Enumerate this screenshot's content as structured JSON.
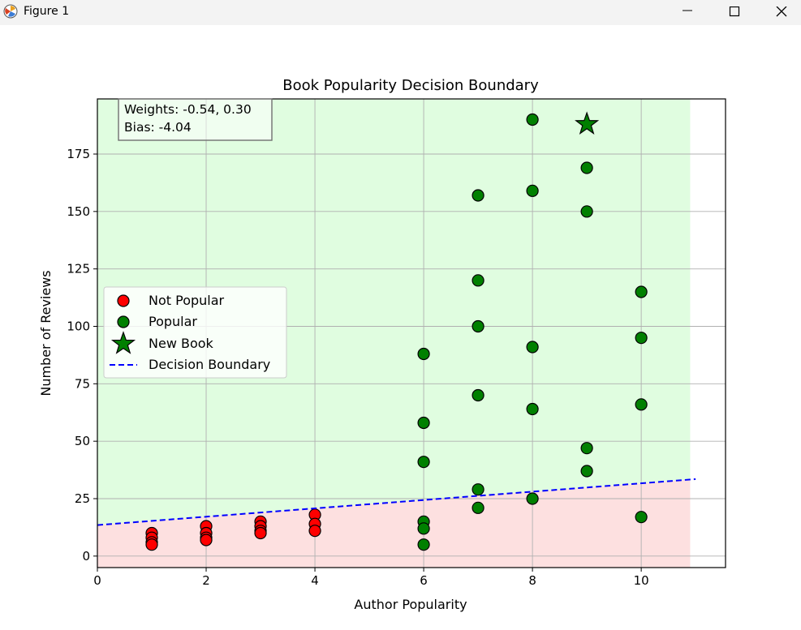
{
  "window": {
    "title": "Figure 1",
    "icons": [
      "app-icon",
      "minimize-icon",
      "maximize-icon",
      "close-icon"
    ]
  },
  "chart_data": {
    "type": "scatter",
    "title": "Book Popularity Decision Boundary",
    "xlabel": "Author Popularity",
    "ylabel": "Number of Reviews",
    "xlim": [
      0,
      11.55
    ],
    "ylim": [
      -5,
      199
    ],
    "xticks": [
      "0",
      "2",
      "4",
      "6",
      "8",
      "10"
    ],
    "yticks": [
      "0",
      "25",
      "50",
      "75",
      "100",
      "125",
      "150",
      "175"
    ],
    "grid": true,
    "legend_position": "center-left",
    "region_x_max": 10.9,
    "regions": [
      {
        "name": "Popular region",
        "color": "#e0fde0"
      },
      {
        "name": "Not popular region",
        "color": "#fde0e0"
      }
    ],
    "annotation": [
      "Weights: -0.54, 0.30",
      "Bias: -4.04"
    ],
    "series": [
      {
        "name": "Not Popular",
        "marker": "circle",
        "color": "#ff0000",
        "points": [
          [
            1,
            10
          ],
          [
            1,
            8
          ],
          [
            1,
            6
          ],
          [
            1,
            5
          ],
          [
            2,
            13
          ],
          [
            2,
            10
          ],
          [
            2,
            8
          ],
          [
            2,
            7
          ],
          [
            3,
            15
          ],
          [
            3,
            13
          ],
          [
            3,
            11
          ],
          [
            3,
            10
          ],
          [
            4,
            18
          ],
          [
            4,
            14
          ],
          [
            4,
            11
          ]
        ]
      },
      {
        "name": "Popular",
        "marker": "circle",
        "color": "#008000",
        "points": [
          [
            6,
            88
          ],
          [
            6,
            58
          ],
          [
            6,
            41
          ],
          [
            6,
            15
          ],
          [
            6,
            12
          ],
          [
            6,
            5
          ],
          [
            7,
            157
          ],
          [
            7,
            120
          ],
          [
            7,
            100
          ],
          [
            7,
            70
          ],
          [
            7,
            29
          ],
          [
            7,
            21
          ],
          [
            8,
            190
          ],
          [
            8,
            159
          ],
          [
            8,
            91
          ],
          [
            8,
            64
          ],
          [
            8,
            25
          ],
          [
            9,
            169
          ],
          [
            9,
            150
          ],
          [
            9,
            47
          ],
          [
            9,
            37
          ],
          [
            10,
            115
          ],
          [
            10,
            95
          ],
          [
            10,
            66
          ],
          [
            10,
            17
          ]
        ]
      },
      {
        "name": "New Book",
        "marker": "star",
        "color": "#008000",
        "points": [
          [
            9,
            188
          ]
        ]
      },
      {
        "name": "Decision Boundary",
        "marker": "dashed-line",
        "color": "#0000ff",
        "points": [
          [
            0,
            13.5
          ],
          [
            11,
            33.5
          ]
        ]
      }
    ]
  }
}
